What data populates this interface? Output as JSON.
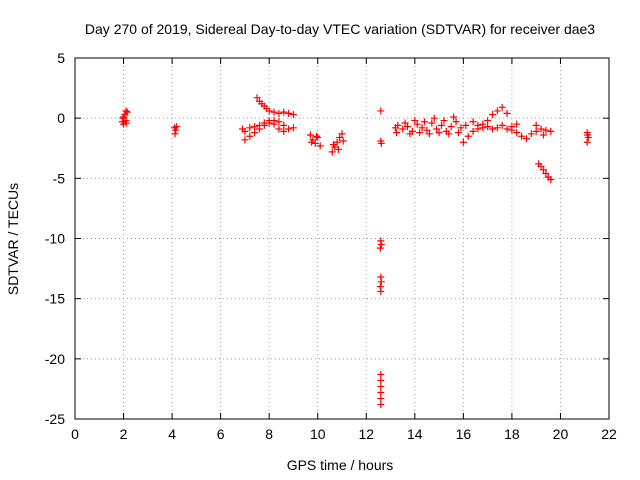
{
  "chart_data": {
    "type": "scatter",
    "title": "Day 270 of 2019, Sidereal Day-to-day VTEC variation (SDTVAR) for receiver dae3",
    "xlabel": "GPS time / hours",
    "ylabel": "SDTVAR / TECUs",
    "xlim": [
      0,
      22
    ],
    "ylim": [
      -25,
      5
    ],
    "xticks": [
      0,
      2,
      4,
      6,
      8,
      10,
      12,
      14,
      16,
      18,
      20,
      22
    ],
    "yticks": [
      5,
      0,
      -5,
      -10,
      -15,
      -20,
      -25
    ],
    "xtick_labels": [
      "0",
      "2",
      "4",
      "6",
      "8",
      "10",
      "12",
      "14",
      "16",
      "18",
      "20",
      "22"
    ],
    "ytick_labels": [
      "5",
      "0",
      "-5",
      "-10",
      "-15",
      "-20",
      "-25"
    ],
    "grid": true,
    "marker": "+",
    "color": "#ff0000",
    "series": [
      {
        "name": "dae3",
        "points": [
          [
            1.95,
            -0.3
          ],
          [
            2.0,
            0.1
          ],
          [
            2.05,
            0.3
          ],
          [
            2.1,
            -0.2
          ],
          [
            2.15,
            0.5
          ],
          [
            2.0,
            -0.5
          ],
          [
            2.1,
            0.6
          ],
          [
            1.98,
            0.0
          ],
          [
            2.12,
            -0.4
          ],
          [
            4.1,
            -0.8
          ],
          [
            4.15,
            -1.0
          ],
          [
            4.12,
            -1.3
          ],
          [
            4.18,
            -0.7
          ],
          [
            6.9,
            -0.9
          ],
          [
            7.0,
            -1.1
          ],
          [
            7.0,
            -1.8
          ],
          [
            7.2,
            -1.5
          ],
          [
            7.4,
            -1.2
          ],
          [
            7.6,
            -0.9
          ],
          [
            7.8,
            -0.6
          ],
          [
            8.0,
            -0.4
          ],
          [
            8.2,
            -0.2
          ],
          [
            8.4,
            -0.3
          ],
          [
            8.6,
            -0.6
          ],
          [
            8.8,
            -0.9
          ],
          [
            9.0,
            -0.8
          ],
          [
            7.2,
            -0.8
          ],
          [
            7.4,
            -0.7
          ],
          [
            7.6,
            -0.6
          ],
          [
            7.8,
            -0.4
          ],
          [
            8.0,
            -0.2
          ],
          [
            8.2,
            -0.5
          ],
          [
            8.4,
            -0.9
          ],
          [
            8.6,
            -1.1
          ],
          [
            7.5,
            1.7
          ],
          [
            7.6,
            1.4
          ],
          [
            7.7,
            1.2
          ],
          [
            7.8,
            1.0
          ],
          [
            7.9,
            0.8
          ],
          [
            8.0,
            0.6
          ],
          [
            8.2,
            0.5
          ],
          [
            8.4,
            0.4
          ],
          [
            8.6,
            0.5
          ],
          [
            8.8,
            0.4
          ],
          [
            9.0,
            0.3
          ],
          [
            9.7,
            -1.4
          ],
          [
            9.8,
            -1.8
          ],
          [
            9.9,
            -2.1
          ],
          [
            10.0,
            -1.6
          ],
          [
            10.1,
            -2.3
          ],
          [
            9.75,
            -2.0
          ],
          [
            9.95,
            -1.5
          ],
          [
            10.6,
            -2.8
          ],
          [
            10.7,
            -2.4
          ],
          [
            10.8,
            -2.0
          ],
          [
            10.9,
            -1.6
          ],
          [
            11.0,
            -1.3
          ],
          [
            10.65,
            -2.2
          ],
          [
            10.85,
            -2.6
          ],
          [
            11.05,
            -1.9
          ],
          [
            12.6,
            0.6
          ],
          [
            12.6,
            -1.9
          ],
          [
            12.62,
            -2.1
          ],
          [
            12.6,
            -10.2
          ],
          [
            12.62,
            -10.5
          ],
          [
            12.58,
            -10.8
          ],
          [
            12.6,
            -13.2
          ],
          [
            12.62,
            -13.6
          ],
          [
            12.58,
            -14.0
          ],
          [
            12.6,
            -14.4
          ],
          [
            12.6,
            -21.3
          ],
          [
            12.6,
            -21.8
          ],
          [
            12.6,
            -22.3
          ],
          [
            12.6,
            -22.8
          ],
          [
            12.6,
            -23.3
          ],
          [
            12.6,
            -23.8
          ],
          [
            13.2,
            -0.8
          ],
          [
            13.25,
            -1.2
          ],
          [
            13.3,
            -0.6
          ],
          [
            13.5,
            -0.9
          ],
          [
            13.7,
            -0.7
          ],
          [
            13.9,
            -1.1
          ],
          [
            14.1,
            -0.5
          ],
          [
            14.3,
            -0.8
          ],
          [
            14.5,
            -1.0
          ],
          [
            14.7,
            -0.4
          ],
          [
            14.9,
            -0.9
          ],
          [
            15.1,
            -0.6
          ],
          [
            15.3,
            -1.1
          ],
          [
            15.5,
            -0.7
          ],
          [
            15.7,
            -0.3
          ],
          [
            15.9,
            -0.8
          ],
          [
            16.1,
            -0.6
          ],
          [
            13.6,
            -0.4
          ],
          [
            13.8,
            -1.3
          ],
          [
            14.0,
            -0.2
          ],
          [
            14.2,
            -1.2
          ],
          [
            14.4,
            -0.3
          ],
          [
            14.6,
            -1.3
          ],
          [
            14.8,
            0.0
          ],
          [
            15.0,
            -1.2
          ],
          [
            15.2,
            -0.2
          ],
          [
            15.4,
            -1.3
          ],
          [
            15.6,
            0.1
          ],
          [
            15.8,
            -1.2
          ],
          [
            16.0,
            -2.0
          ],
          [
            16.2,
            -1.5
          ],
          [
            16.4,
            -1.1
          ],
          [
            16.6,
            -0.9
          ],
          [
            16.8,
            -0.5
          ],
          [
            17.0,
            -0.2
          ],
          [
            17.2,
            0.3
          ],
          [
            17.4,
            0.6
          ],
          [
            17.6,
            0.9
          ],
          [
            17.8,
            0.4
          ],
          [
            16.4,
            -0.3
          ],
          [
            16.6,
            -0.6
          ],
          [
            16.8,
            -0.8
          ],
          [
            17.0,
            -0.7
          ],
          [
            17.2,
            -0.9
          ],
          [
            17.4,
            -0.8
          ],
          [
            17.6,
            -0.6
          ],
          [
            17.8,
            -0.9
          ],
          [
            18.0,
            -0.7
          ],
          [
            18.2,
            -0.5
          ],
          [
            18.0,
            -1.0
          ],
          [
            18.2,
            -1.2
          ],
          [
            18.4,
            -1.5
          ],
          [
            18.6,
            -1.7
          ],
          [
            18.8,
            -1.3
          ],
          [
            19.0,
            -1.1
          ],
          [
            19.2,
            -0.9
          ],
          [
            19.4,
            -1.0
          ],
          [
            19.6,
            -1.1
          ],
          [
            19.0,
            -0.6
          ],
          [
            19.3,
            -1.4
          ],
          [
            19.1,
            -3.8
          ],
          [
            19.2,
            -4.0
          ],
          [
            19.3,
            -4.3
          ],
          [
            19.4,
            -4.6
          ],
          [
            19.5,
            -4.9
          ],
          [
            19.6,
            -5.1
          ],
          [
            21.1,
            -1.2
          ],
          [
            21.15,
            -1.6
          ],
          [
            21.1,
            -2.0
          ],
          [
            21.12,
            -1.4
          ]
        ]
      }
    ]
  }
}
